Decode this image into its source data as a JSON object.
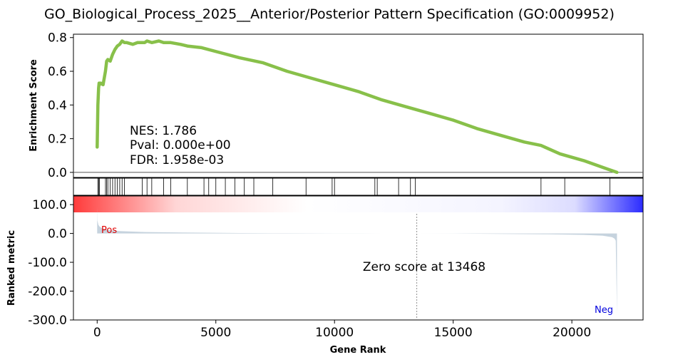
{
  "chart_data": {
    "type": "line",
    "title": "GO_Biological_Process_2025__Anterior/Posterior Pattern Specification (GO:0009952)",
    "xlabel": "Gene Rank",
    "xlim": [
      -1000,
      23000
    ],
    "x_ticks": [
      0,
      5000,
      10000,
      15000,
      20000
    ],
    "x_tick_labels": [
      "0",
      "5000",
      "10000",
      "15000",
      "20000"
    ],
    "es_panel": {
      "ylabel": "Enrichment Score",
      "ylim": [
        -0.03,
        0.82
      ],
      "y_ticks": [
        0.0,
        0.2,
        0.4,
        0.6,
        0.8
      ],
      "y_tick_labels": [
        "0.0",
        "0.2",
        "0.4",
        "0.6",
        "0.8"
      ],
      "line_color": "#88c04a",
      "series": [
        {
          "x": [
            0,
            30,
            60,
            80,
            100,
            150,
            250,
            350,
            400,
            450,
            550,
            650,
            750,
            850,
            950,
            1050,
            1150,
            1250,
            1500,
            1700,
            1800,
            2000,
            2100,
            2300,
            2600,
            2800,
            3100,
            3500,
            3800,
            4400,
            5200,
            6000,
            7000,
            8000,
            9000,
            10000,
            11000,
            12000,
            13000,
            14000,
            15000,
            16000,
            17000,
            18000,
            18700,
            19500,
            20500,
            21500,
            21700,
            21900
          ],
          "y": [
            0.15,
            0.4,
            0.5,
            0.53,
            0.52,
            0.53,
            0.52,
            0.6,
            0.66,
            0.67,
            0.66,
            0.7,
            0.73,
            0.75,
            0.76,
            0.78,
            0.77,
            0.77,
            0.76,
            0.77,
            0.77,
            0.77,
            0.78,
            0.77,
            0.78,
            0.77,
            0.77,
            0.76,
            0.75,
            0.74,
            0.71,
            0.68,
            0.65,
            0.6,
            0.56,
            0.52,
            0.48,
            0.43,
            0.39,
            0.35,
            0.31,
            0.26,
            0.22,
            0.18,
            0.16,
            0.11,
            0.07,
            0.02,
            0.01,
            0.0
          ]
        }
      ],
      "annotations": [
        "NES: 1.786",
        "Pval: 0.000e+00",
        "FDR: 1.958e-03"
      ]
    },
    "hit_positions": [
      30,
      60,
      100,
      350,
      400,
      450,
      550,
      650,
      750,
      850,
      950,
      1050,
      1150,
      1900,
      2100,
      2300,
      2800,
      3100,
      3800,
      4500,
      4700,
      5000,
      5400,
      5800,
      6200,
      6600,
      7400,
      8800,
      9900,
      10000,
      11700,
      11800,
      12700,
      13200,
      13400,
      18700,
      19700,
      21600
    ],
    "ranking_bar": {
      "pos_color": "#ff3b3b",
      "neg_color": "#2b2bff"
    },
    "metric_panel": {
      "ylabel": "Ranked metric",
      "ylim": [
        -300,
        130
      ],
      "y_ticks": [
        100,
        0,
        -100,
        -200,
        -300
      ],
      "y_tick_labels": [
        "100.0",
        "0.0",
        "-100.0",
        "-200.0",
        "-300.0"
      ],
      "fill_color": "#c6d3de",
      "x": [
        0,
        10,
        50,
        100,
        200,
        400,
        700,
        1000,
        2000,
        4000,
        6000,
        8000,
        10000,
        12000,
        13468,
        15000,
        17000,
        19000,
        20500,
        21300,
        21700,
        21800,
        21850,
        21900
      ],
      "y": [
        90,
        45,
        30,
        24,
        18,
        13,
        10,
        8,
        5,
        3,
        1.5,
        0.8,
        0.3,
        0.1,
        0,
        -0.5,
        -1.5,
        -3,
        -5,
        -8,
        -13,
        -18,
        -25,
        -280
      ],
      "zero_line_x": 13468,
      "zero_label": "Zero score at 13468",
      "pos_label": "Pos",
      "neg_label": "Neg"
    }
  }
}
